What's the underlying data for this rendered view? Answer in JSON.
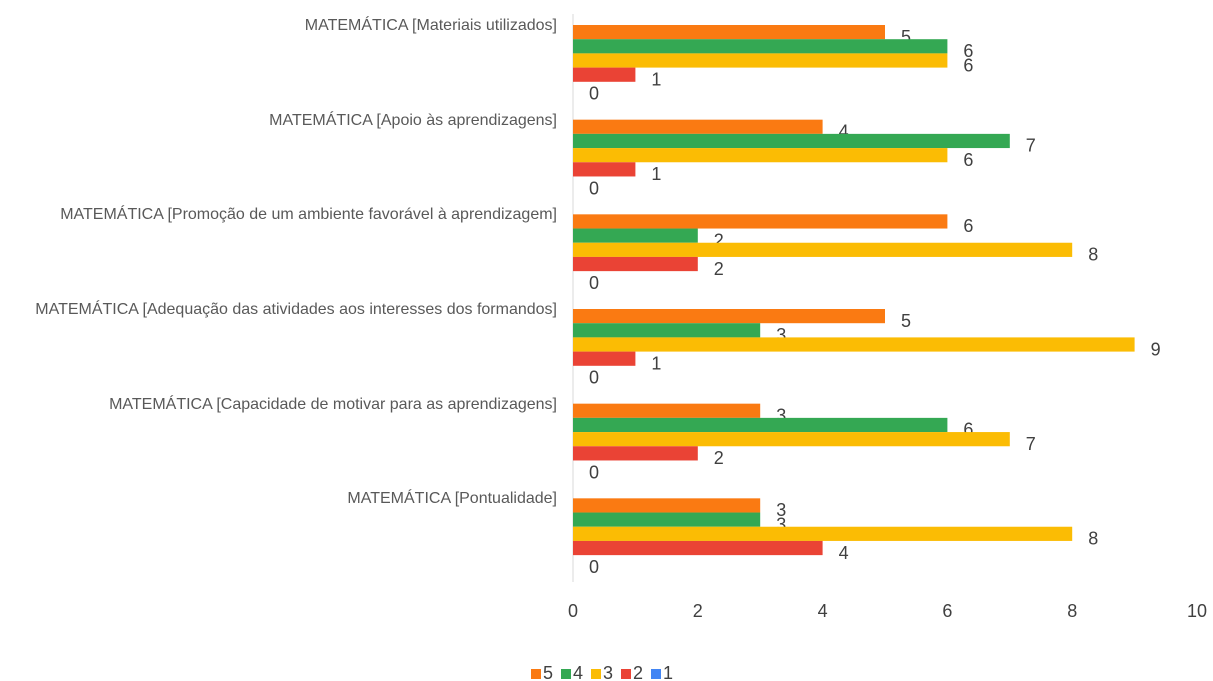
{
  "chart_data": {
    "type": "barh",
    "categories": [
      "MATEMÁTICA [Materiais utilizados]",
      "MATEMÁTICA [Apoio às aprendizagens]",
      "MATEMÁTICA [Promoção de um ambiente favorável à aprendizagem]",
      "MATEMÁTICA [Adequação das atividades aos interesses dos formandos]",
      "MATEMÁTICA [Capacidade de motivar para as aprendizagens]",
      "MATEMÁTICA [Pontualidade]"
    ],
    "series": [
      {
        "name": "5",
        "color": "#fa7a12",
        "values": [
          5,
          4,
          6,
          5,
          3,
          3
        ]
      },
      {
        "name": "4",
        "color": "#34a853",
        "values": [
          6,
          7,
          2,
          3,
          6,
          3
        ]
      },
      {
        "name": "3",
        "color": "#fbbc04",
        "values": [
          6,
          6,
          8,
          9,
          7,
          8
        ]
      },
      {
        "name": "2",
        "color": "#ea4335",
        "values": [
          1,
          1,
          2,
          1,
          2,
          4
        ]
      },
      {
        "name": "1",
        "color": "#4285f4",
        "values": [
          0,
          0,
          0,
          0,
          0,
          0
        ]
      }
    ],
    "xlim": [
      0,
      10
    ],
    "xticks": [
      0,
      2,
      4,
      6,
      8,
      10
    ],
    "grid": false,
    "legend": "bottom"
  }
}
